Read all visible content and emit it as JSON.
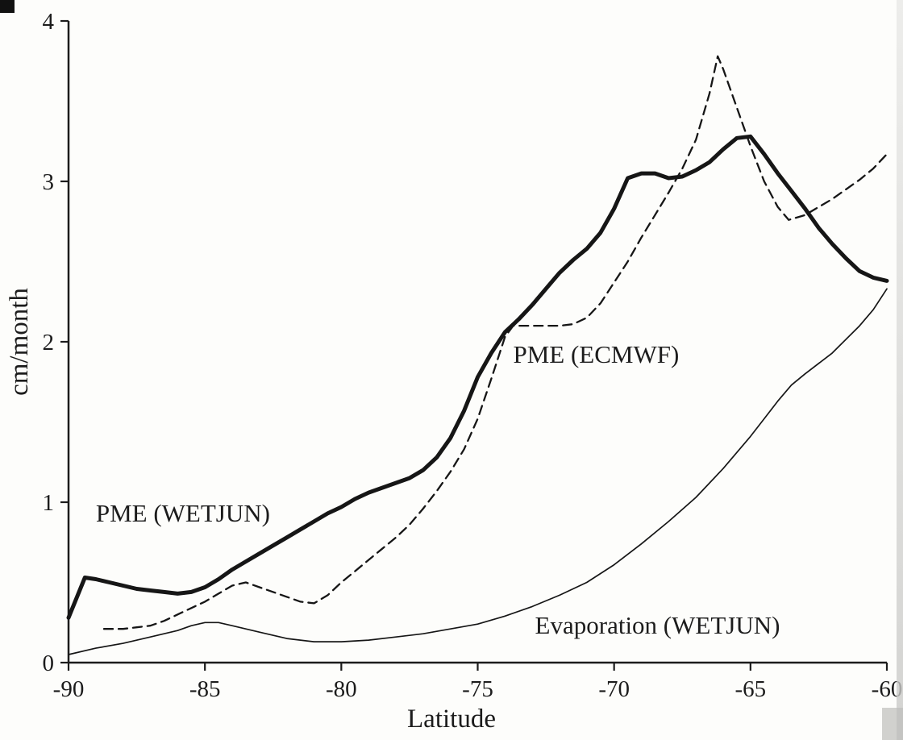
{
  "figure": {
    "ink_color": "#1c1c1c",
    "paper_color": "#fdfdfb"
  },
  "chart_data": {
    "type": "line",
    "title": "",
    "xlabel": "Latitude",
    "ylabel": "cm/month",
    "xlim": [
      -90,
      -60
    ],
    "ylim": [
      0,
      4
    ],
    "x_ticks": [
      "-90",
      "-85",
      "-80",
      "-75",
      "-70",
      "-65",
      "-60"
    ],
    "y_ticks": [
      "0",
      "1",
      "2",
      "3",
      "4"
    ],
    "grid": false,
    "legend": "inline-annotations",
    "series": [
      {
        "name": "PME (WETJUN)",
        "slug": "pme-wetjun",
        "style": "thick-solid",
        "x": [
          -90,
          -89.4,
          -89,
          -88.5,
          -88,
          -87.5,
          -87,
          -86.5,
          -86,
          -85.5,
          -85,
          -84.5,
          -84,
          -83.5,
          -83,
          -82.5,
          -82,
          -81.5,
          -81,
          -80.5,
          -80,
          -79.5,
          -79,
          -78.5,
          -78,
          -77.5,
          -77,
          -76.5,
          -76,
          -75.5,
          -75,
          -74.5,
          -74,
          -73.5,
          -73,
          -72.5,
          -72,
          -71.5,
          -71,
          -70.5,
          -70,
          -69.5,
          -69,
          -68.5,
          -68,
          -67.5,
          -67,
          -66.5,
          -66,
          -65.5,
          -65,
          -64.5,
          -64,
          -63.5,
          -63,
          -62.5,
          -62,
          -61.5,
          -61,
          -60.5,
          -60
        ],
        "y": [
          0.28,
          0.53,
          0.52,
          0.5,
          0.48,
          0.46,
          0.45,
          0.44,
          0.43,
          0.44,
          0.47,
          0.52,
          0.58,
          0.63,
          0.68,
          0.73,
          0.78,
          0.83,
          0.88,
          0.93,
          0.97,
          1.02,
          1.06,
          1.09,
          1.12,
          1.15,
          1.2,
          1.28,
          1.4,
          1.57,
          1.78,
          1.93,
          2.06,
          2.14,
          2.23,
          2.33,
          2.43,
          2.51,
          2.58,
          2.68,
          2.83,
          3.02,
          3.05,
          3.05,
          3.02,
          3.03,
          3.07,
          3.12,
          3.2,
          3.27,
          3.28,
          3.17,
          3.05,
          2.94,
          2.83,
          2.71,
          2.61,
          2.52,
          2.44,
          2.4,
          2.38
        ]
      },
      {
        "name": "PME (ECMWF)",
        "slug": "pme-ecmwf",
        "style": "dashed",
        "x": [
          -88.7,
          -88,
          -87.5,
          -87,
          -86.5,
          -86,
          -85.5,
          -85,
          -84.5,
          -84,
          -83.5,
          -83,
          -82.5,
          -82,
          -81.5,
          -81,
          -80.5,
          -80,
          -79.5,
          -79,
          -78.5,
          -78,
          -77.5,
          -77,
          -76.5,
          -76,
          -75.5,
          -75,
          -74.5,
          -74,
          -73.7,
          -73,
          -72.5,
          -72,
          -71.5,
          -71,
          -70.5,
          -70,
          -69.5,
          -69,
          -68.5,
          -68,
          -67.5,
          -67,
          -66.5,
          -66.2,
          -66,
          -65.5,
          -65,
          -64.5,
          -64,
          -63.6,
          -63,
          -62.5,
          -62,
          -61.5,
          -61,
          -60.5,
          -60
        ],
        "y": [
          0.21,
          0.21,
          0.22,
          0.23,
          0.26,
          0.3,
          0.34,
          0.38,
          0.43,
          0.48,
          0.5,
          0.47,
          0.44,
          0.41,
          0.38,
          0.37,
          0.42,
          0.5,
          0.57,
          0.64,
          0.71,
          0.78,
          0.86,
          0.96,
          1.07,
          1.19,
          1.33,
          1.52,
          1.77,
          2.03,
          2.1,
          2.1,
          2.1,
          2.1,
          2.11,
          2.15,
          2.24,
          2.37,
          2.5,
          2.65,
          2.79,
          2.93,
          3.08,
          3.26,
          3.55,
          3.78,
          3.7,
          3.46,
          3.22,
          3.0,
          2.84,
          2.76,
          2.79,
          2.84,
          2.89,
          2.95,
          3.01,
          3.08,
          3.17
        ]
      },
      {
        "name": "Evaporation (WETJUN)",
        "slug": "evaporation-wetjun",
        "style": "thin-solid",
        "x": [
          -90,
          -89,
          -88,
          -87,
          -86,
          -85.5,
          -85,
          -84.5,
          -84,
          -83,
          -82,
          -81,
          -80,
          -79,
          -78,
          -77,
          -76,
          -75,
          -74,
          -73,
          -72,
          -71,
          -70,
          -69,
          -68,
          -67,
          -66,
          -65,
          -64.5,
          -64,
          -63.5,
          -63,
          -62,
          -61,
          -60.5,
          -60
        ],
        "y": [
          0.05,
          0.09,
          0.12,
          0.16,
          0.2,
          0.23,
          0.25,
          0.25,
          0.23,
          0.19,
          0.15,
          0.13,
          0.13,
          0.14,
          0.16,
          0.18,
          0.21,
          0.24,
          0.29,
          0.35,
          0.42,
          0.5,
          0.61,
          0.74,
          0.88,
          1.03,
          1.21,
          1.41,
          1.52,
          1.63,
          1.73,
          1.8,
          1.93,
          2.1,
          2.2,
          2.33
        ]
      }
    ],
    "annotations": [
      {
        "text": "PME (WETJUN)",
        "x": -89.0,
        "y": 0.88
      },
      {
        "text": "PME (ECMWF)",
        "x": -73.7,
        "y": 1.87
      },
      {
        "text": "Evaporation (WETJUN)",
        "x": -72.9,
        "y": 0.18
      }
    ]
  }
}
